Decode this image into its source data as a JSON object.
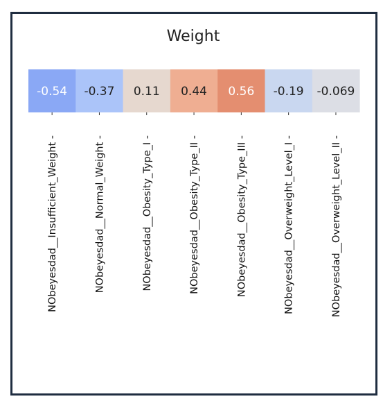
{
  "chart_data": {
    "type": "heatmap",
    "title": "Weight",
    "rows": [
      "Weight"
    ],
    "categories": [
      "NObeyesdad__Insufficient_Weight",
      "NObeyesdad__Normal_Weight",
      "NObeyesdad__Obesity_Type_I",
      "NObeyesdad__Obesity_Type_II",
      "NObeyesdad__Obesity_Type_III",
      "NObeyesdad__Overweight_Level_I",
      "NObeyesdad__Overweight_Level_II"
    ],
    "values": [
      -0.54,
      -0.37,
      0.11,
      0.44,
      0.56,
      -0.19,
      -0.069
    ],
    "labels": [
      "-0.54",
      "-0.37",
      "0.11",
      "0.44",
      "0.56",
      "-0.19",
      "-0.069"
    ],
    "colors": [
      "#8aa8f5",
      "#abc4f9",
      "#e6d8cf",
      "#efae92",
      "#e48e70",
      "#c9d7f0",
      "#dcdee5"
    ],
    "text_colors": [
      "#ffffff",
      "#222222",
      "#222222",
      "#222222",
      "#ffffff",
      "#222222",
      "#222222"
    ],
    "colormap": "coolwarm"
  }
}
